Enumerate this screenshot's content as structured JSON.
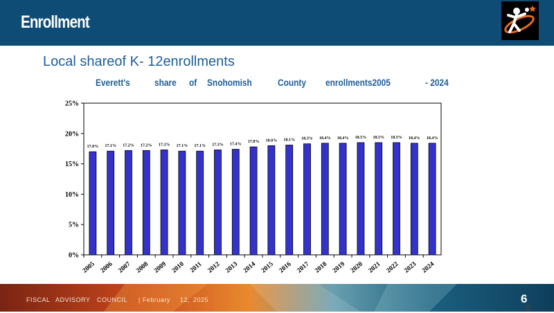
{
  "header": {
    "title": "Enrollment"
  },
  "subtitle": "Local shareof K- 12enrollments",
  "chart_title_parts": [
    "Everett's",
    "share",
    "of",
    "Snohomish",
    "County",
    "enrollments2005",
    "- 2024"
  ],
  "footer": {
    "parts": [
      "FISCAL",
      "ADVISORY",
      "COUNCIL",
      "| February",
      "12,",
      "2025"
    ],
    "page_number": "6",
    "page_number_secondary": "6"
  },
  "colors": {
    "header_bg": "#0f4c75",
    "bar_fill": "#3333cc",
    "text_blue": "#1f5d96"
  },
  "icons": {
    "logo": "running-figure-logo-icon"
  },
  "chart_data": {
    "type": "bar",
    "title": "Everett's share of Snohomish County enrollments2005 - 2024",
    "xlabel": "",
    "ylabel": "",
    "categories": [
      "2005",
      "2006",
      "2007",
      "2008",
      "2009",
      "2010",
      "2011",
      "2012",
      "2013",
      "2014",
      "2015",
      "2016",
      "2017",
      "2018",
      "2019",
      "2020",
      "2021",
      "2022",
      "2023",
      "2024"
    ],
    "values": [
      17.0,
      17.1,
      17.2,
      17.2,
      17.3,
      17.1,
      17.1,
      17.3,
      17.4,
      17.8,
      18.0,
      18.1,
      18.3,
      18.4,
      18.4,
      18.5,
      18.5,
      18.5,
      18.4,
      18.4
    ],
    "data_labels": [
      "17.0%",
      "17.1%",
      "17.2%",
      "17.2%",
      "17.3%",
      "17.1%",
      "17.1%",
      "17.3%",
      "17.4%",
      "17.8%",
      "18.0%",
      "18.1%",
      "18.3%",
      "18.4%",
      "18.4%",
      "18.5%",
      "18.5%",
      "18.5%",
      "18.4%",
      "18.4%"
    ],
    "y_ticks": [
      0,
      5,
      10,
      15,
      20,
      25
    ],
    "y_tick_labels": [
      "0%",
      "5%",
      "10%",
      "15%",
      "20%",
      "25%"
    ],
    "ylim": [
      0,
      25
    ],
    "grid": false,
    "legend": "none"
  }
}
